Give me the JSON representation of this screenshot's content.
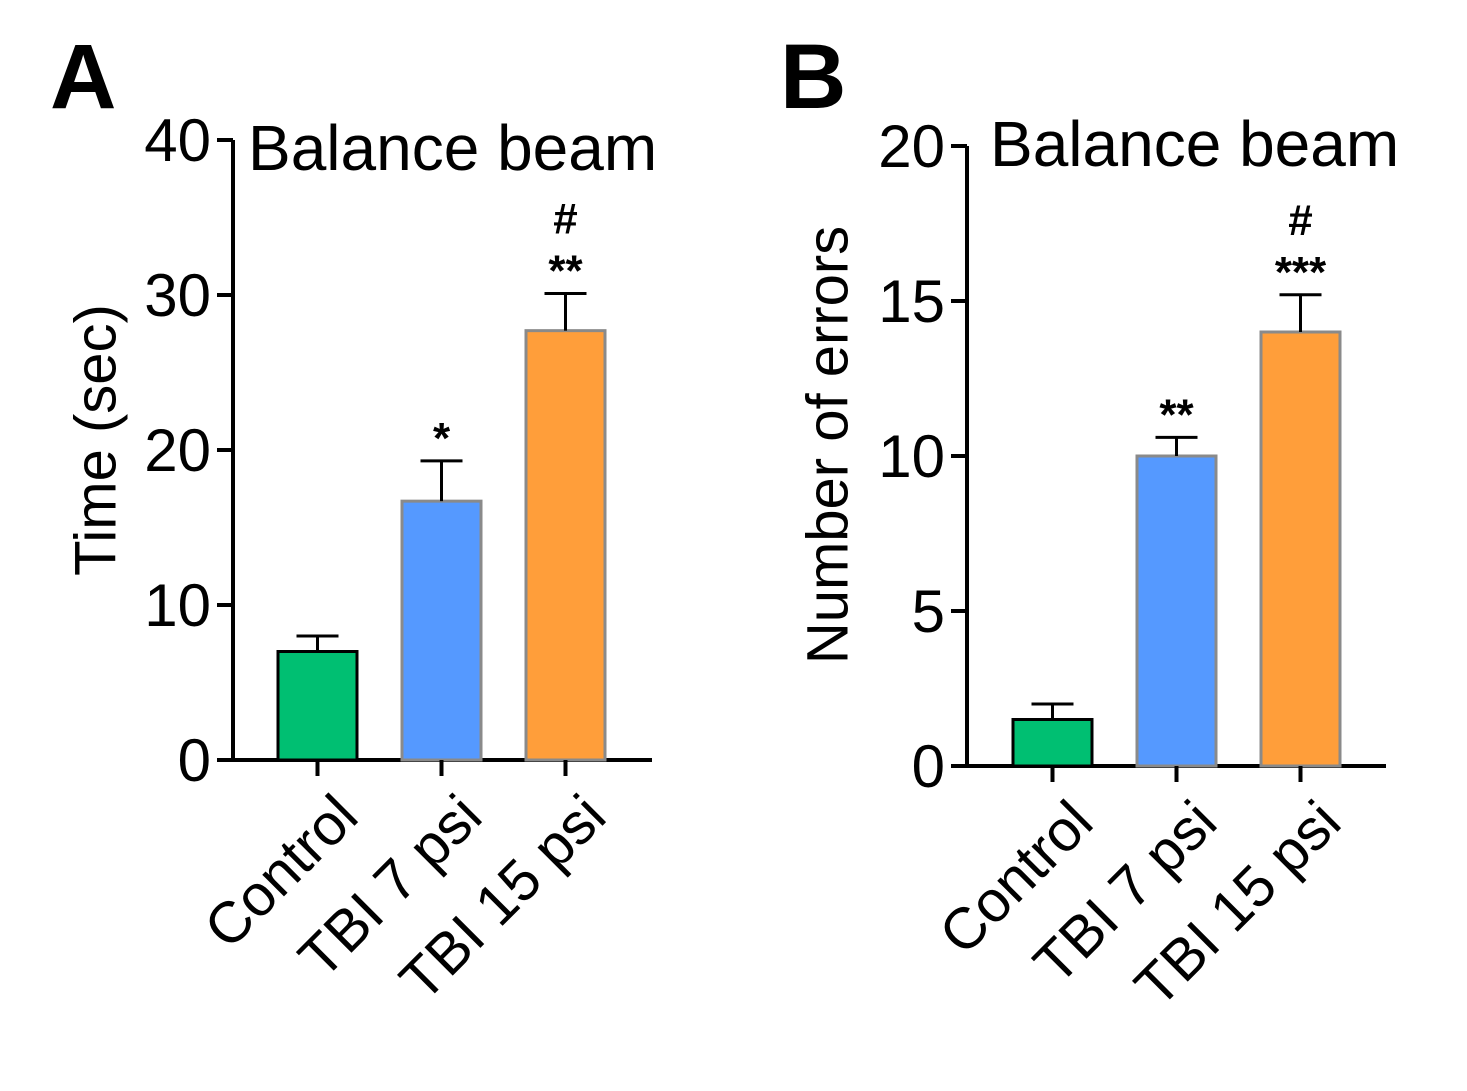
{
  "chart_data": [
    {
      "panel": "A",
      "type": "bar",
      "title": "Balance beam",
      "xlabel": "",
      "ylabel": "Time (sec)",
      "ylim": [
        0,
        40
      ],
      "yticks": [
        0,
        10,
        20,
        30,
        40
      ],
      "categories": [
        "Control",
        "TBI 7 psi",
        "TBI 15 psi"
      ],
      "values": [
        7.0,
        16.7,
        27.7
      ],
      "errors": [
        1.0,
        2.6,
        2.4
      ],
      "colors": [
        "#00BF72",
        "#5599FF",
        "#FF9E3A"
      ],
      "annotations": [
        [],
        [
          "*"
        ],
        [
          "**",
          "#"
        ]
      ]
    },
    {
      "panel": "B",
      "type": "bar",
      "title": "Balance beam",
      "xlabel": "",
      "ylabel": "Number of errors",
      "ylim": [
        0,
        20
      ],
      "yticks": [
        0,
        5,
        10,
        15,
        20
      ],
      "categories": [
        "Control",
        "TBI 7 psi",
        "TBI 15 psi"
      ],
      "values": [
        1.5,
        10.0,
        14.0
      ],
      "errors": [
        0.5,
        0.6,
        1.2
      ],
      "colors": [
        "#00BF72",
        "#5599FF",
        "#FF9E3A"
      ],
      "annotations": [
        [],
        [
          "**"
        ],
        [
          "***",
          "#"
        ]
      ]
    }
  ]
}
